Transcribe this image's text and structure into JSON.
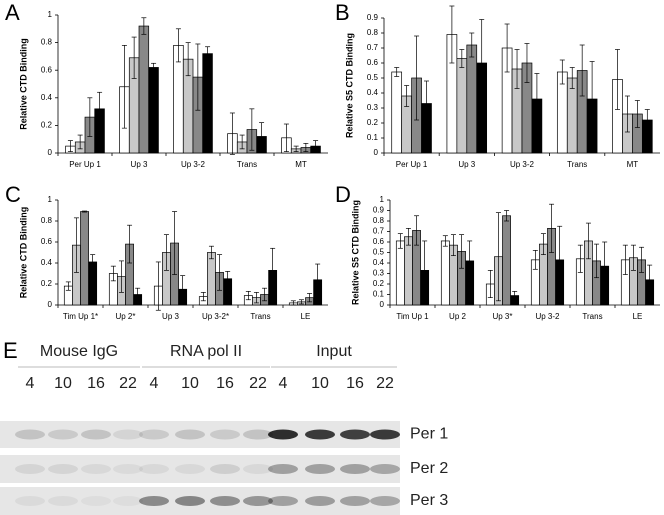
{
  "chart_data": [
    {
      "panel": "A",
      "type": "bar",
      "ylabel": "Relative CTD Binding",
      "categories": [
        "Per Up 1",
        "Up 3",
        "Up 3-2",
        "Trans",
        "MT"
      ],
      "ylim": [
        0,
        1
      ],
      "yticks": [
        0,
        0.2,
        0.4,
        0.6,
        0.8,
        1
      ],
      "series": [
        {
          "color": "#ffffff",
          "values": [
            0.05,
            0.48,
            0.78,
            0.14,
            0.11
          ],
          "errors": [
            0.04,
            0.3,
            0.12,
            0.15,
            0.1
          ]
        },
        {
          "color": "#c8c8c8",
          "values": [
            0.08,
            0.69,
            0.68,
            0.08,
            0.03
          ],
          "errors": [
            0.05,
            0.15,
            0.12,
            0.05,
            0.02
          ]
        },
        {
          "color": "#888888",
          "values": [
            0.26,
            0.92,
            0.55,
            0.17,
            0.04
          ],
          "errors": [
            0.14,
            0.06,
            0.24,
            0.15,
            0.03
          ]
        },
        {
          "color": "#000000",
          "values": [
            0.32,
            0.62,
            0.72,
            0.12,
            0.05
          ],
          "errors": [
            0.12,
            0.03,
            0.05,
            0.1,
            0.04
          ]
        }
      ]
    },
    {
      "panel": "B",
      "type": "bar",
      "ylabel": "Relative S5 CTD Binding",
      "categories": [
        "Per Up 1",
        "Up 3",
        "Up 3-2",
        "Trans",
        "MT"
      ],
      "ylim": [
        0,
        0.9
      ],
      "yticks": [
        0,
        0.1,
        0.2,
        0.3,
        0.4,
        0.5,
        0.6,
        0.7,
        0.8,
        0.9
      ],
      "series": [
        {
          "color": "#ffffff",
          "values": [
            0.54,
            0.79,
            0.7,
            0.54,
            0.49
          ],
          "errors": [
            0.03,
            0.19,
            0.16,
            0.08,
            0.2
          ]
        },
        {
          "color": "#c8c8c8",
          "values": [
            0.38,
            0.63,
            0.56,
            0.5,
            0.26
          ],
          "errors": [
            0.07,
            0.06,
            0.13,
            0.07,
            0.12
          ]
        },
        {
          "color": "#888888",
          "values": [
            0.5,
            0.72,
            0.6,
            0.55,
            0.26
          ],
          "errors": [
            0.28,
            0.08,
            0.13,
            0.17,
            0.09
          ]
        },
        {
          "color": "#000000",
          "values": [
            0.33,
            0.6,
            0.36,
            0.36,
            0.22
          ],
          "errors": [
            0.15,
            0.29,
            0.17,
            0.25,
            0.07
          ]
        }
      ]
    },
    {
      "panel": "C",
      "type": "bar",
      "ylabel": "Relative CTD Binding",
      "categories": [
        "Tim Up 1*",
        "Up 2*",
        "Up 3",
        "Up 3-2*",
        "Trans",
        "LE"
      ],
      "ylim": [
        0,
        1
      ],
      "yticks": [
        0,
        0.2,
        0.4,
        0.6,
        0.8,
        1
      ],
      "series": [
        {
          "color": "#ffffff",
          "values": [
            0.18,
            0.3,
            0.18,
            0.08,
            0.09,
            0.02
          ],
          "errors": [
            0.04,
            0.07,
            0.23,
            0.04,
            0.04,
            0.02
          ]
        },
        {
          "color": "#c8c8c8",
          "values": [
            0.57,
            0.27,
            0.5,
            0.5,
            0.07,
            0.03
          ],
          "errors": [
            0.26,
            0.15,
            0.17,
            0.06,
            0.05,
            0.02
          ]
        },
        {
          "color": "#888888",
          "values": [
            0.89,
            0.58,
            0.59,
            0.31,
            0.1,
            0.07
          ],
          "errors": [
            0.005,
            0.18,
            0.3,
            0.17,
            0.06,
            0.04
          ]
        },
        {
          "color": "#000000",
          "values": [
            0.41,
            0.1,
            0.15,
            0.25,
            0.33,
            0.24
          ],
          "errors": [
            0.07,
            0.06,
            0.13,
            0.07,
            0.21,
            0.15
          ]
        }
      ]
    },
    {
      "panel": "D",
      "type": "bar",
      "ylabel": "Relative S5 CTD Binding",
      "categories": [
        "Tim Up 1",
        "Up 2",
        "Up 3*",
        "Up 3-2",
        "Trans",
        "LE"
      ],
      "ylim": [
        0,
        1
      ],
      "yticks": [
        0,
        0.1,
        0.2,
        0.3,
        0.4,
        0.5,
        0.6,
        0.7,
        0.8,
        0.9,
        1
      ],
      "series": [
        {
          "color": "#ffffff",
          "values": [
            0.61,
            0.61,
            0.2,
            0.43,
            0.44,
            0.43
          ],
          "errors": [
            0.07,
            0.05,
            0.13,
            0.09,
            0.13,
            0.14
          ]
        },
        {
          "color": "#c8c8c8",
          "values": [
            0.65,
            0.57,
            0.46,
            0.58,
            0.61,
            0.45
          ],
          "errors": [
            0.08,
            0.1,
            0.42,
            0.1,
            0.17,
            0.12
          ]
        },
        {
          "color": "#888888",
          "values": [
            0.71,
            0.51,
            0.85,
            0.73,
            0.42,
            0.43
          ],
          "errors": [
            0.14,
            0.16,
            0.05,
            0.23,
            0.16,
            0.12
          ]
        },
        {
          "color": "#000000",
          "values": [
            0.33,
            0.42,
            0.09,
            0.43,
            0.37,
            0.24
          ],
          "errors": [
            0.28,
            0.19,
            0.04,
            0.32,
            0.23,
            0.14
          ]
        }
      ]
    }
  ],
  "gel": {
    "panel": "E",
    "groups": [
      {
        "name": "Mouse IgG",
        "times": [
          "4",
          "10",
          "16",
          "22"
        ]
      },
      {
        "name": "RNA pol II",
        "times": [
          "4",
          "10",
          "16",
          "22"
        ]
      },
      {
        "name": "Input",
        "times": [
          "4",
          "10",
          "16",
          "22"
        ]
      }
    ],
    "rows": [
      "Per 1",
      "Per 2",
      "Per 3"
    ]
  }
}
